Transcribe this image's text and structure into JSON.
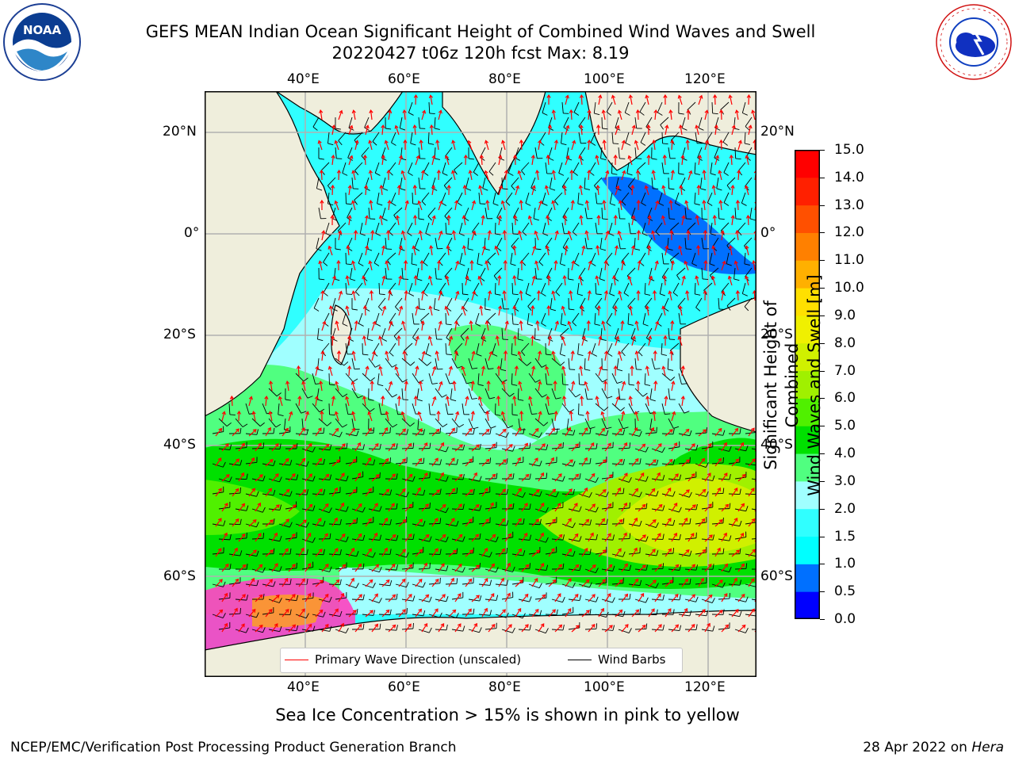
{
  "title": {
    "line1": "GEFS MEAN Indian Ocean Significant Height of Combined Wind Waves and Swell",
    "line2": "20220427 t06z 120h fcst   Max: 8.19"
  },
  "logos": {
    "noaa_text": "NOAA",
    "noaa_ring": "NATIONAL OCEANIC AND ATMOSPHERIC ADMINISTRATION · U.S. DEPARTMENT OF COMMERCE",
    "nws_ring": "NATIONAL WEATHER SERVICE"
  },
  "map": {
    "lon_labels_top": [
      "40°E",
      "60°E",
      "80°E",
      "100°E",
      "120°E"
    ],
    "lon_labels_bottom": [
      "40°E",
      "60°E",
      "80°E",
      "100°E",
      "120°E"
    ],
    "lat_labels_left": [
      "20°N",
      "0°",
      "20°S",
      "40°S",
      "60°S"
    ],
    "lat_labels_right": [
      "20°N",
      "0°",
      "20°S",
      "40°S",
      "60°S"
    ],
    "extent": {
      "lon": [
        20,
        130
      ],
      "lat": [
        -70,
        28
      ]
    },
    "land_color": "#efeedc",
    "ocean_base_color": "#30ffff"
  },
  "colorbar": {
    "title": "Significant Height of Combined Wind Waves and Swell [m]",
    "title_line1": "Significant Height of Combined",
    "title_line2": "Wind Waves and Swell [m]",
    "ticks": [
      "15.0",
      "14.0",
      "13.0",
      "12.0",
      "11.0",
      "10.0",
      "9.0",
      "8.0",
      "7.0",
      "6.0",
      "5.0",
      "4.0",
      "3.0",
      "2.0",
      "1.5",
      "1.0",
      "0.5",
      "0.0"
    ],
    "colors": [
      "#0000ff",
      "#0070ff",
      "#00ffff",
      "#30ffff",
      "#a0ffff",
      "#50ff80",
      "#00e000",
      "#50f000",
      "#a0f000",
      "#d0f000",
      "#f0f000",
      "#ffe000",
      "#ffb000",
      "#ff8000",
      "#ff5000",
      "#ff2000",
      "#ff0000"
    ]
  },
  "legend": {
    "wave_label": "Primary Wave Direction (unscaled)",
    "wind_label": "Wind Barbs",
    "wave_color": "#ff0000",
    "wind_color": "#000000"
  },
  "note": "Sea Ice Concentration > 15% is shown in pink to yellow",
  "footer": {
    "left": "NCEP/EMC/Verification Post Processing Product Generation Branch",
    "date": "28 Apr 2022 on ",
    "machine": "Hera"
  }
}
